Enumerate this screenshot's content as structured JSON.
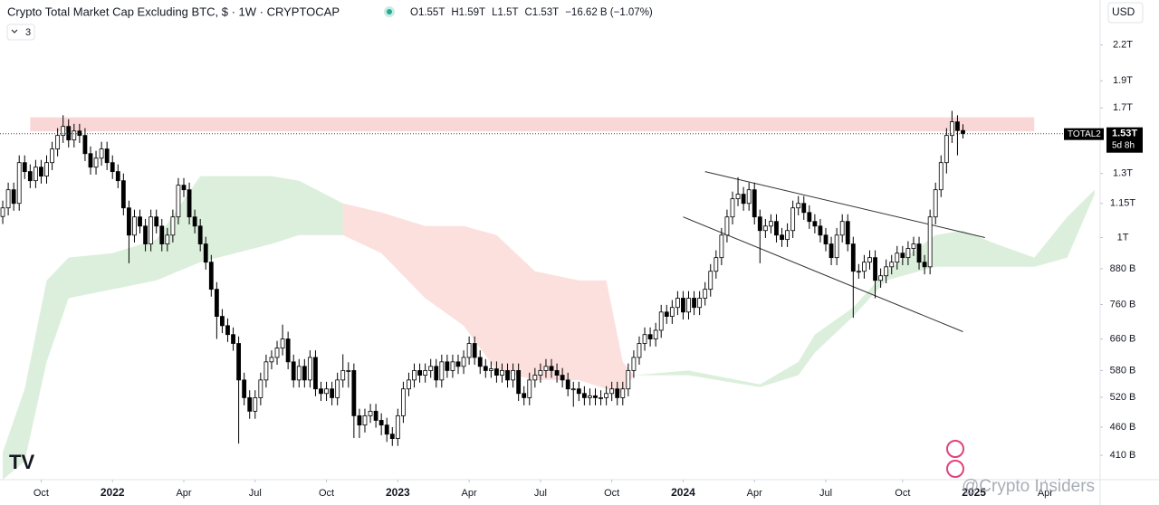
{
  "toolbar": {
    "currency": "USD",
    "indicator_count": 3
  },
  "chart_data": {
    "type": "candlestick",
    "title": "Crypto Total Market Cap Excluding BTC, $ · 1W · CRYPTOCAP",
    "legend_values": [
      "O1.55T",
      "H1.59T",
      "L1.5T",
      "C1.53T",
      "−16.62 B (−1.07%)"
    ],
    "log_scale": true,
    "up_color": "#ffffff",
    "down_color": "#000000",
    "xlim": [
      -0.5,
      200
    ],
    "xticks": [
      {
        "value": 7,
        "label": "Oct"
      },
      {
        "value": 20,
        "label": "2022"
      },
      {
        "value": 33,
        "label": "Apr"
      },
      {
        "value": 46,
        "label": "Jul"
      },
      {
        "value": 59,
        "label": "Oct"
      },
      {
        "value": 72,
        "label": "2023"
      },
      {
        "value": 85,
        "label": "Apr"
      },
      {
        "value": 98,
        "label": "Jul"
      },
      {
        "value": 111,
        "label": "Oct"
      },
      {
        "value": 124,
        "label": "2024"
      },
      {
        "value": 137,
        "label": "Apr"
      },
      {
        "value": 150,
        "label": "Jul"
      },
      {
        "value": 164,
        "label": "Oct"
      },
      {
        "value": 177,
        "label": "2025"
      },
      {
        "value": 190,
        "label": "Apr"
      }
    ],
    "ylim": [
      371,
      2645
    ],
    "yticks": [
      {
        "value": 2200,
        "label": "2.2T"
      },
      {
        "value": 1900,
        "label": "1.9T"
      },
      {
        "value": 1700,
        "label": "1.7T"
      },
      {
        "value": 1300,
        "label": "1.3T"
      },
      {
        "value": 1150,
        "label": "1.15T"
      },
      {
        "value": 1000,
        "label": "1T"
      },
      {
        "value": 880,
        "label": "880 B"
      },
      {
        "value": 760,
        "label": "760 B"
      },
      {
        "value": 660,
        "label": "660 B"
      },
      {
        "value": 580,
        "label": "580 B"
      },
      {
        "value": 520,
        "label": "520 B"
      },
      {
        "value": 460,
        "label": "460 B"
      },
      {
        "value": 410,
        "label": "410 B"
      }
    ],
    "last_price": {
      "value": 1530,
      "label": "1.53T"
    },
    "symbol": "TOTAL2",
    "countdown": "5d 8h",
    "resistance_zone": {
      "from": 5,
      "to": 188,
      "low": 1545,
      "high": 1636,
      "color": "#f9d0d0"
    },
    "trendlines": [
      {
        "x": [
          128,
          179
        ],
        "values": [
          1310,
          1000
        ],
        "color": "#333333"
      },
      {
        "x": [
          124,
          175
        ],
        "values": [
          1088,
          680
        ],
        "color": "#333333"
      }
    ],
    "cloud": [
      {
        "color": "#dcefdc",
        "x": [
          0,
          4,
          8,
          12,
          20,
          28,
          36,
          49,
          54,
          62
        ],
        "upper": [
          415,
          538,
          839,
          921,
          938,
          992,
          1286,
          1286,
          1262,
          1150
        ],
        "lower": [
          371,
          400,
          601,
          780,
          809,
          839,
          904,
          974,
          1010,
          1010
        ]
      },
      {
        "color": "#fbe0de",
        "x": [
          62,
          69,
          77,
          84,
          90,
          97,
          105,
          110,
          113,
          115
        ],
        "upper": [
          1150,
          1108,
          1048,
          1048,
          1010,
          871,
          839,
          839,
          601,
          569
        ],
        "lower": [
          1010,
          938,
          780,
          697,
          580,
          558,
          558,
          538,
          528,
          569
        ]
      },
      {
        "color": "#dcefdc",
        "x": [
          115,
          125,
          138,
          145,
          148,
          155,
          161,
          170,
          175,
          181,
          188,
          194,
          199
        ],
        "upper": [
          569,
          580,
          548,
          601,
          672,
          751,
          871,
          1010,
          1029,
          974,
          921,
          1088,
          1216
        ],
        "lower": [
          569,
          569,
          542,
          569,
          624,
          724,
          839,
          887,
          887,
          887,
          887,
          921,
          1194
        ]
      }
    ],
    "ohlc": [
      [
        1090,
        1163,
        1057,
        1129
      ],
      [
        1129,
        1252,
        1095,
        1216
      ],
      [
        1216,
        1252,
        1116,
        1150
      ],
      [
        1150,
        1400,
        1116,
        1359
      ],
      [
        1359,
        1400,
        1271,
        1310
      ],
      [
        1310,
        1349,
        1224,
        1262
      ],
      [
        1262,
        1374,
        1224,
        1334
      ],
      [
        1334,
        1374,
        1247,
        1286
      ],
      [
        1286,
        1400,
        1247,
        1359
      ],
      [
        1359,
        1480,
        1318,
        1437
      ],
      [
        1437,
        1565,
        1394,
        1519
      ],
      [
        1519,
        1650,
        1473,
        1576
      ],
      [
        1576,
        1623,
        1446,
        1491
      ],
      [
        1491,
        1593,
        1446,
        1547
      ],
      [
        1547,
        1593,
        1473,
        1519
      ],
      [
        1519,
        1565,
        1368,
        1410
      ],
      [
        1410,
        1452,
        1294,
        1334
      ],
      [
        1334,
        1426,
        1294,
        1384
      ],
      [
        1384,
        1480,
        1342,
        1437
      ],
      [
        1437,
        1480,
        1318,
        1359
      ],
      [
        1359,
        1400,
        1271,
        1310
      ],
      [
        1310,
        1349,
        1224,
        1262
      ],
      [
        1262,
        1300,
        1095,
        1129
      ],
      [
        1129,
        1163,
        900,
        1010
      ],
      [
        1010,
        1121,
        980,
        1088
      ],
      [
        1088,
        1121,
        1017,
        1048
      ],
      [
        1048,
        1079,
        945,
        974
      ],
      [
        974,
        1121,
        945,
        1088
      ],
      [
        1088,
        1121,
        1017,
        1048
      ],
      [
        1048,
        1079,
        945,
        974
      ],
      [
        974,
        1040,
        945,
        1010
      ],
      [
        1010,
        1121,
        980,
        1088
      ],
      [
        1088,
        1276,
        1055,
        1239
      ],
      [
        1239,
        1276,
        1180,
        1216
      ],
      [
        1216,
        1252,
        1055,
        1088
      ],
      [
        1088,
        1121,
        1017,
        1048
      ],
      [
        1048,
        1079,
        945,
        974
      ],
      [
        974,
        1003,
        877,
        904
      ],
      [
        904,
        931,
        785,
        809
      ],
      [
        809,
        833,
        660,
        724
      ],
      [
        724,
        746,
        676,
        697
      ],
      [
        697,
        718,
        652,
        672
      ],
      [
        672,
        692,
        629,
        648
      ],
      [
        648,
        667,
        430,
        558
      ],
      [
        558,
        575,
        503,
        519
      ],
      [
        519,
        535,
        476,
        491
      ],
      [
        491,
        535,
        476,
        519
      ],
      [
        519,
        575,
        503,
        558
      ],
      [
        558,
        619,
        541,
        601
      ],
      [
        601,
        630,
        583,
        612
      ],
      [
        612,
        655,
        594,
        636
      ],
      [
        636,
        700,
        617,
        660
      ],
      [
        660,
        680,
        583,
        601
      ],
      [
        601,
        619,
        541,
        558
      ],
      [
        558,
        608,
        541,
        590
      ],
      [
        590,
        608,
        541,
        558
      ],
      [
        558,
        630,
        541,
        612
      ],
      [
        612,
        630,
        522,
        538
      ],
      [
        538,
        554,
        512,
        528
      ],
      [
        528,
        554,
        512,
        538
      ],
      [
        538,
        554,
        503,
        519
      ],
      [
        519,
        575,
        503,
        558
      ],
      [
        558,
        620,
        541,
        580
      ],
      [
        580,
        600,
        541,
        580
      ],
      [
        580,
        597,
        440,
        482
      ],
      [
        482,
        496,
        440,
        464
      ],
      [
        464,
        496,
        450,
        482
      ],
      [
        482,
        506,
        468,
        491
      ],
      [
        491,
        506,
        459,
        473
      ],
      [
        473,
        487,
        445,
        464
      ],
      [
        464,
        478,
        433,
        447
      ],
      [
        447,
        460,
        426,
        439
      ],
      [
        439,
        496,
        426,
        482
      ],
      [
        482,
        554,
        468,
        538
      ],
      [
        538,
        575,
        522,
        558
      ],
      [
        558,
        597,
        541,
        580
      ],
      [
        580,
        597,
        552,
        569
      ],
      [
        569,
        597,
        552,
        580
      ],
      [
        580,
        608,
        563,
        590
      ],
      [
        590,
        608,
        541,
        558
      ],
      [
        558,
        619,
        541,
        601
      ],
      [
        601,
        619,
        563,
        580
      ],
      [
        580,
        619,
        563,
        601
      ],
      [
        601,
        619,
        572,
        590
      ],
      [
        590,
        630,
        572,
        612
      ],
      [
        612,
        667,
        594,
        648
      ],
      [
        648,
        667,
        594,
        612
      ],
      [
        612,
        630,
        572,
        590
      ],
      [
        590,
        608,
        563,
        580
      ],
      [
        580,
        602,
        563,
        584
      ],
      [
        584,
        602,
        552,
        569
      ],
      [
        569,
        597,
        552,
        580
      ],
      [
        580,
        597,
        541,
        558
      ],
      [
        558,
        597,
        541,
        580
      ],
      [
        580,
        597,
        512,
        528
      ],
      [
        528,
        544,
        503,
        519
      ],
      [
        519,
        575,
        503,
        558
      ],
      [
        558,
        586,
        541,
        569
      ],
      [
        569,
        597,
        552,
        580
      ],
      [
        580,
        608,
        563,
        590
      ],
      [
        590,
        608,
        563,
        580
      ],
      [
        580,
        597,
        552,
        569
      ],
      [
        569,
        586,
        541,
        558
      ],
      [
        558,
        575,
        522,
        538
      ],
      [
        538,
        554,
        500,
        538
      ],
      [
        538,
        554,
        512,
        528
      ],
      [
        528,
        544,
        503,
        519
      ],
      [
        519,
        539,
        503,
        523
      ],
      [
        523,
        539,
        503,
        519
      ],
      [
        519,
        535,
        503,
        519
      ],
      [
        519,
        544,
        503,
        528
      ],
      [
        528,
        554,
        512,
        538
      ],
      [
        538,
        554,
        503,
        519
      ],
      [
        519,
        554,
        503,
        538
      ],
      [
        538,
        597,
        522,
        580
      ],
      [
        580,
        630,
        563,
        612
      ],
      [
        612,
        667,
        594,
        648
      ],
      [
        648,
        692,
        629,
        672
      ],
      [
        672,
        692,
        640,
        660
      ],
      [
        660,
        705,
        640,
        684
      ],
      [
        684,
        759,
        663,
        737
      ],
      [
        737,
        759,
        702,
        724
      ],
      [
        724,
        774,
        702,
        751
      ],
      [
        751,
        803,
        728,
        780
      ],
      [
        780,
        803,
        715,
        737
      ],
      [
        737,
        803,
        715,
        780
      ],
      [
        780,
        803,
        728,
        751
      ],
      [
        751,
        803,
        728,
        780
      ],
      [
        780,
        833,
        757,
        809
      ],
      [
        809,
        897,
        785,
        871
      ],
      [
        871,
        949,
        845,
        921
      ],
      [
        921,
        1040,
        893,
        1010
      ],
      [
        1010,
        1121,
        980,
        1088
      ],
      [
        1088,
        1207,
        1055,
        1172
      ],
      [
        1172,
        1280,
        1137,
        1194
      ],
      [
        1194,
        1230,
        1116,
        1150
      ],
      [
        1150,
        1252,
        1116,
        1216
      ],
      [
        1216,
        1252,
        1055,
        1088
      ],
      [
        1088,
        1121,
        900,
        1029
      ],
      [
        1029,
        1079,
        998,
        1048
      ],
      [
        1048,
        1100,
        1017,
        1068
      ],
      [
        1068,
        1100,
        980,
        1010
      ],
      [
        1010,
        1040,
        962,
        992
      ],
      [
        992,
        1060,
        962,
        1029
      ],
      [
        1029,
        1163,
        998,
        1129
      ],
      [
        1129,
        1185,
        1095,
        1150
      ],
      [
        1150,
        1185,
        1075,
        1108
      ],
      [
        1108,
        1141,
        1036,
        1068
      ],
      [
        1068,
        1100,
        1017,
        1048
      ],
      [
        1048,
        1079,
        980,
        1010
      ],
      [
        1010,
        1040,
        945,
        974
      ],
      [
        974,
        1003,
        893,
        921
      ],
      [
        921,
        1040,
        893,
        1010
      ],
      [
        1010,
        1100,
        980,
        1068
      ],
      [
        1068,
        1100,
        945,
        974
      ],
      [
        974,
        1003,
        720,
        871
      ],
      [
        871,
        897,
        845,
        871
      ],
      [
        871,
        931,
        845,
        904
      ],
      [
        904,
        949,
        877,
        921
      ],
      [
        921,
        949,
        780,
        839
      ],
      [
        839,
        881,
        814,
        855
      ],
      [
        855,
        914,
        829,
        887
      ],
      [
        887,
        931,
        860,
        904
      ],
      [
        904,
        966,
        877,
        938
      ],
      [
        938,
        966,
        893,
        921
      ],
      [
        921,
        985,
        893,
        956
      ],
      [
        956,
        1003,
        927,
        974
      ],
      [
        974,
        1003,
        877,
        904
      ],
      [
        904,
        931,
        860,
        887
      ],
      [
        887,
        1121,
        860,
        1088
      ],
      [
        1088,
        1252,
        1055,
        1216
      ],
      [
        1216,
        1400,
        1180,
        1359
      ],
      [
        1359,
        1565,
        1300,
        1519
      ],
      [
        1519,
        1680,
        1473,
        1606
      ],
      [
        1606,
        1650,
        1400,
        1550
      ],
      [
        1550,
        1590,
        1500,
        1530
      ]
    ]
  },
  "watermark": "@Crypto Insiders"
}
